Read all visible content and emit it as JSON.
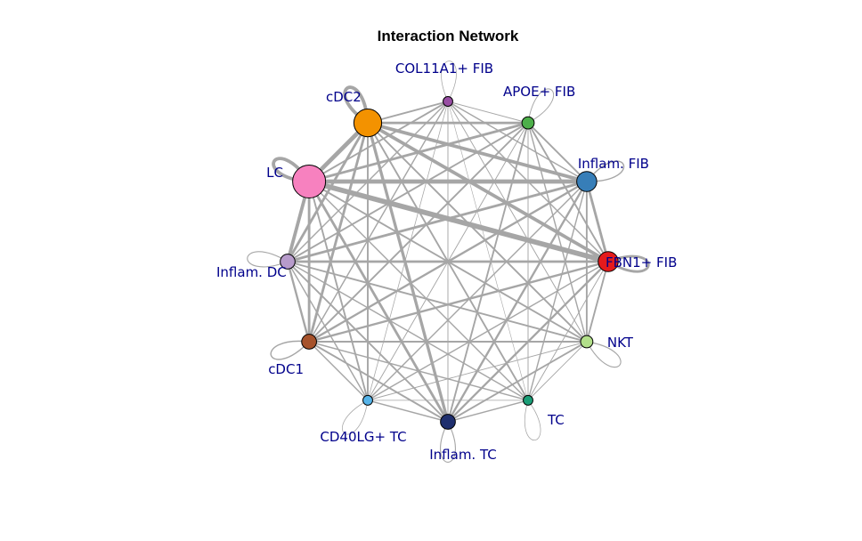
{
  "title": "Interaction Network",
  "colors": {
    "edge": "#a6a6a6",
    "label": "#00008B",
    "node_border": "#000000"
  },
  "nodes": [
    {
      "id": "COL11A1",
      "label": "COL11A1+ FIB",
      "color": "#984EA3",
      "weight": 1
    },
    {
      "id": "APOE",
      "label": "APOE+ FIB",
      "color": "#4DAF4A",
      "weight": 2
    },
    {
      "id": "InflamFIB",
      "label": "Inflam. FIB",
      "color": "#377EB8",
      "weight": 5
    },
    {
      "id": "FBN1",
      "label": "FBN1+ FIB",
      "color": "#E41A1C",
      "weight": 5
    },
    {
      "id": "NKT",
      "label": "NKT",
      "color": "#B2DF8A",
      "weight": 2
    },
    {
      "id": "TC",
      "label": "TC",
      "color": "#1B9E77",
      "weight": 1
    },
    {
      "id": "InflamTC",
      "label": "Inflam. TC",
      "color": "#1F2F6E",
      "weight": 3
    },
    {
      "id": "CD40LG",
      "label": "CD40LG+ TC",
      "color": "#56B4E9",
      "weight": 1
    },
    {
      "id": "cDC1",
      "label": "cDC1",
      "color": "#A6522B",
      "weight": 3
    },
    {
      "id": "InflamDC",
      "label": "Inflam. DC",
      "color": "#B79BCB",
      "weight": 3
    },
    {
      "id": "LC",
      "label": "LC",
      "color": "#F781BF",
      "weight": 10
    },
    {
      "id": "cDC2",
      "label": "cDC2",
      "color": "#F39200",
      "weight": 8
    }
  ],
  "edges": [
    {
      "source": "LC",
      "target": "FBN1",
      "weight": 6
    },
    {
      "source": "LC",
      "target": "InflamFIB",
      "weight": 5
    },
    {
      "source": "cDC2",
      "target": "InflamFIB",
      "weight": 4
    },
    {
      "source": "cDC2",
      "target": "FBN1",
      "weight": 4
    },
    {
      "source": "LC",
      "target": "cDC2",
      "weight": 5
    },
    {
      "source": "LC",
      "target": "APOE",
      "weight": 3
    },
    {
      "source": "LC",
      "target": "COL11A1",
      "weight": 2
    },
    {
      "source": "LC",
      "target": "InflamDC",
      "weight": 4
    },
    {
      "source": "LC",
      "target": "cDC1",
      "weight": 3
    },
    {
      "source": "LC",
      "target": "InflamTC",
      "weight": 3
    },
    {
      "source": "LC",
      "target": "CD40LG",
      "weight": 2
    },
    {
      "source": "LC",
      "target": "NKT",
      "weight": 2
    },
    {
      "source": "LC",
      "target": "TC",
      "weight": 1.5
    },
    {
      "source": "cDC2",
      "target": "APOE",
      "weight": 3
    },
    {
      "source": "cDC2",
      "target": "COL11A1",
      "weight": 2
    },
    {
      "source": "cDC2",
      "target": "InflamDC",
      "weight": 3
    },
    {
      "source": "cDC2",
      "target": "cDC1",
      "weight": 3
    },
    {
      "source": "cDC2",
      "target": "InflamTC",
      "weight": 3.5
    },
    {
      "source": "cDC2",
      "target": "CD40LG",
      "weight": 2
    },
    {
      "source": "cDC2",
      "target": "NKT",
      "weight": 2
    },
    {
      "source": "cDC2",
      "target": "TC",
      "weight": 2
    },
    {
      "source": "InflamFIB",
      "target": "FBN1",
      "weight": 3
    },
    {
      "source": "InflamFIB",
      "target": "APOE",
      "weight": 2
    },
    {
      "source": "InflamFIB",
      "target": "COL11A1",
      "weight": 1.5
    },
    {
      "source": "InflamFIB",
      "target": "InflamDC",
      "weight": 3
    },
    {
      "source": "InflamFIB",
      "target": "cDC1",
      "weight": 2.5
    },
    {
      "source": "InflamFIB",
      "target": "InflamTC",
      "weight": 2.5
    },
    {
      "source": "InflamFIB",
      "target": "CD40LG",
      "weight": 1.5
    },
    {
      "source": "InflamFIB",
      "target": "NKT",
      "weight": 2
    },
    {
      "source": "InflamFIB",
      "target": "TC",
      "weight": 1.5
    },
    {
      "source": "FBN1",
      "target": "APOE",
      "weight": 2
    },
    {
      "source": "FBN1",
      "target": "COL11A1",
      "weight": 1.5
    },
    {
      "source": "FBN1",
      "target": "InflamDC",
      "weight": 3
    },
    {
      "source": "FBN1",
      "target": "cDC1",
      "weight": 2.5
    },
    {
      "source": "FBN1",
      "target": "InflamTC",
      "weight": 2.5
    },
    {
      "source": "FBN1",
      "target": "CD40LG",
      "weight": 1.5
    },
    {
      "source": "FBN1",
      "target": "NKT",
      "weight": 2
    },
    {
      "source": "FBN1",
      "target": "TC",
      "weight": 1
    },
    {
      "source": "APOE",
      "target": "COL11A1",
      "weight": 1
    },
    {
      "source": "APOE",
      "target": "InflamDC",
      "weight": 2
    },
    {
      "source": "APOE",
      "target": "cDC1",
      "weight": 2
    },
    {
      "source": "APOE",
      "target": "InflamTC",
      "weight": 2
    },
    {
      "source": "APOE",
      "target": "CD40LG",
      "weight": 1
    },
    {
      "source": "APOE",
      "target": "NKT",
      "weight": 1.5
    },
    {
      "source": "APOE",
      "target": "TC",
      "weight": 1
    },
    {
      "source": "COL11A1",
      "target": "InflamDC",
      "weight": 1.5
    },
    {
      "source": "COL11A1",
      "target": "cDC1",
      "weight": 1.5
    },
    {
      "source": "COL11A1",
      "target": "InflamTC",
      "weight": 1
    },
    {
      "source": "COL11A1",
      "target": "CD40LG",
      "weight": 0.8
    },
    {
      "source": "COL11A1",
      "target": "NKT",
      "weight": 1
    },
    {
      "source": "COL11A1",
      "target": "TC",
      "weight": 0.6
    },
    {
      "source": "InflamDC",
      "target": "cDC1",
      "weight": 2.5
    },
    {
      "source": "InflamDC",
      "target": "InflamTC",
      "weight": 2
    },
    {
      "source": "InflamDC",
      "target": "CD40LG",
      "weight": 1.5
    },
    {
      "source": "InflamDC",
      "target": "NKT",
      "weight": 2
    },
    {
      "source": "InflamDC",
      "target": "TC",
      "weight": 1.5
    },
    {
      "source": "cDC1",
      "target": "InflamTC",
      "weight": 2
    },
    {
      "source": "cDC1",
      "target": "CD40LG",
      "weight": 1.5
    },
    {
      "source": "cDC1",
      "target": "NKT",
      "weight": 2
    },
    {
      "source": "cDC1",
      "target": "TC",
      "weight": 1.5
    },
    {
      "source": "InflamTC",
      "target": "CD40LG",
      "weight": 1.5
    },
    {
      "source": "InflamTC",
      "target": "NKT",
      "weight": 2
    },
    {
      "source": "InflamTC",
      "target": "TC",
      "weight": 1.5
    },
    {
      "source": "CD40LG",
      "target": "NKT",
      "weight": 1
    },
    {
      "source": "CD40LG",
      "target": "TC",
      "weight": 0.8
    },
    {
      "source": "NKT",
      "target": "TC",
      "weight": 1
    }
  ],
  "self_loops": [
    {
      "node": "LC",
      "weight": 4
    },
    {
      "node": "cDC2",
      "weight": 4
    },
    {
      "node": "FBN1",
      "weight": 3
    },
    {
      "node": "InflamFIB",
      "weight": 1.5
    },
    {
      "node": "APOE",
      "weight": 1
    },
    {
      "node": "COL11A1",
      "weight": 0.8
    },
    {
      "node": "NKT",
      "weight": 1.2
    },
    {
      "node": "TC",
      "weight": 0.8
    },
    {
      "node": "InflamTC",
      "weight": 1.2
    },
    {
      "node": "CD40LG",
      "weight": 0.8
    },
    {
      "node": "cDC1",
      "weight": 1.5
    },
    {
      "node": "InflamDC",
      "weight": 1.2
    }
  ]
}
